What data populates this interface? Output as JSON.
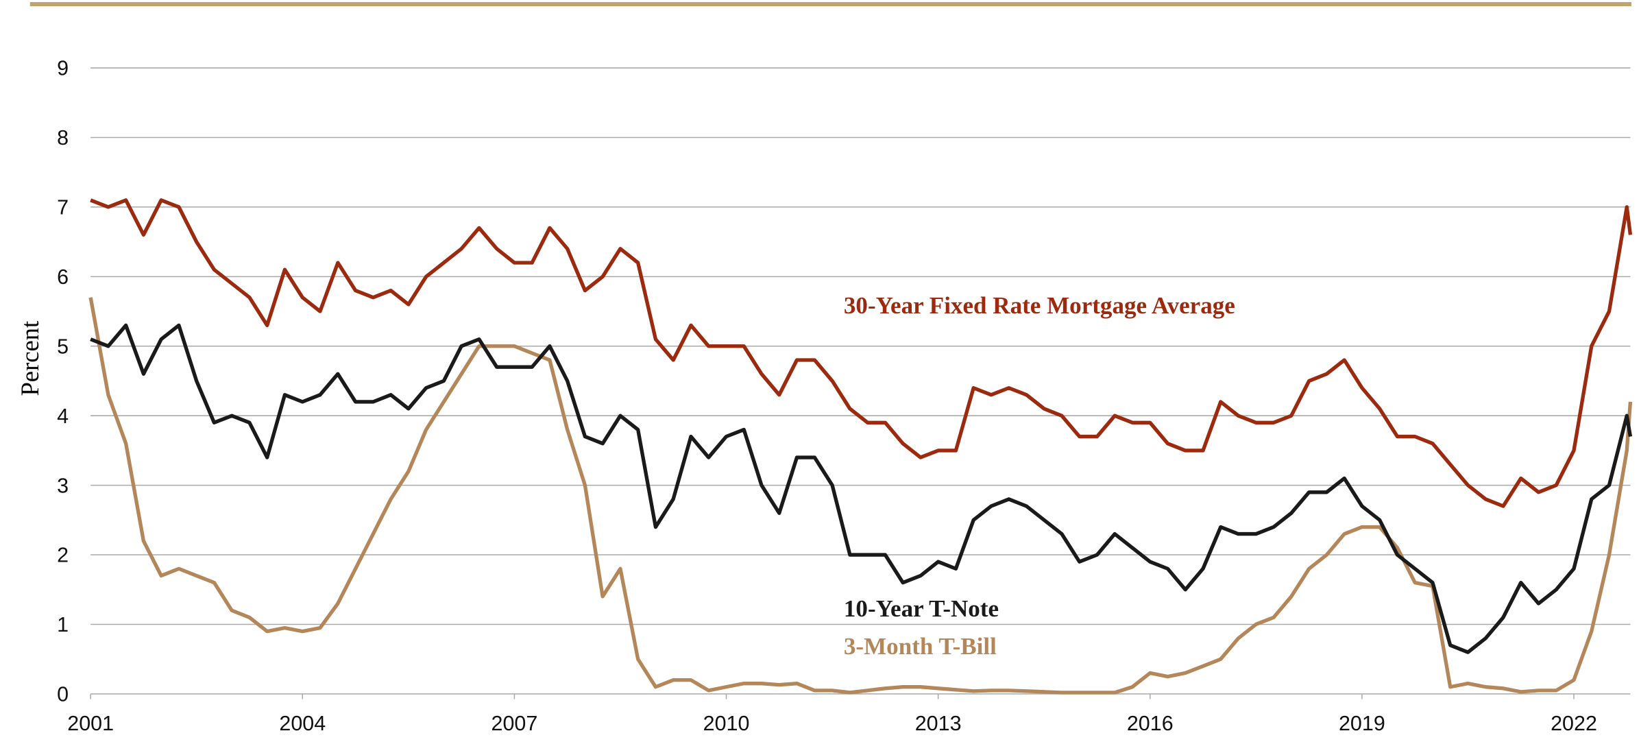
{
  "chart_data": {
    "type": "line",
    "y_label": "Percent",
    "x": [
      2001,
      2001.25,
      2001.5,
      2001.75,
      2002,
      2002.25,
      2002.5,
      2002.75,
      2003,
      2003.25,
      2003.5,
      2003.75,
      2004,
      2004.25,
      2004.5,
      2004.75,
      2005,
      2005.25,
      2005.5,
      2005.75,
      2006,
      2006.25,
      2006.5,
      2006.75,
      2007,
      2007.25,
      2007.5,
      2007.75,
      2008,
      2008.25,
      2008.5,
      2008.75,
      2009,
      2009.25,
      2009.5,
      2009.75,
      2010,
      2010.25,
      2010.5,
      2010.75,
      2011,
      2011.25,
      2011.5,
      2011.75,
      2012,
      2012.25,
      2012.5,
      2012.75,
      2013,
      2013.25,
      2013.5,
      2013.75,
      2014,
      2014.25,
      2014.5,
      2014.75,
      2015,
      2015.25,
      2015.5,
      2015.75,
      2016,
      2016.25,
      2016.5,
      2016.75,
      2017,
      2017.25,
      2017.5,
      2017.75,
      2018,
      2018.25,
      2018.5,
      2018.75,
      2019,
      2019.25,
      2019.5,
      2019.75,
      2020,
      2020.25,
      2020.5,
      2020.75,
      2021,
      2021.25,
      2021.5,
      2021.75,
      2022,
      2022.25,
      2022.5,
      2022.75,
      2022.8
    ],
    "series": [
      {
        "name": "30-Year Fixed Rate Mortgage Average",
        "color": "#9b2a0f",
        "values": [
          7.1,
          7.0,
          7.1,
          6.6,
          7.1,
          7.0,
          6.5,
          6.1,
          5.9,
          5.7,
          5.3,
          6.1,
          5.7,
          5.5,
          6.2,
          5.8,
          5.7,
          5.8,
          5.6,
          6.0,
          6.2,
          6.4,
          6.7,
          6.4,
          6.2,
          6.2,
          6.7,
          6.4,
          5.8,
          6.0,
          6.4,
          6.2,
          5.1,
          4.8,
          5.3,
          5.0,
          5.0,
          5.0,
          4.6,
          4.3,
          4.8,
          4.8,
          4.5,
          4.1,
          3.9,
          3.9,
          3.6,
          3.4,
          3.5,
          3.5,
          4.4,
          4.3,
          4.4,
          4.3,
          4.1,
          4.0,
          3.7,
          3.7,
          4.0,
          3.9,
          3.9,
          3.6,
          3.5,
          3.5,
          4.2,
          4.0,
          3.9,
          3.9,
          4.0,
          4.5,
          4.6,
          4.8,
          4.4,
          4.1,
          3.7,
          3.7,
          3.6,
          3.3,
          3.0,
          2.8,
          2.7,
          3.1,
          2.9,
          3.0,
          3.5,
          5.0,
          5.5,
          7.0,
          6.6
        ]
      },
      {
        "name": "10-Year T-Note",
        "color": "#1a1a1a",
        "values": [
          5.1,
          5.0,
          5.3,
          4.6,
          5.1,
          5.3,
          4.5,
          3.9,
          4.0,
          3.9,
          3.4,
          4.3,
          4.2,
          4.3,
          4.6,
          4.2,
          4.2,
          4.3,
          4.1,
          4.4,
          4.5,
          5.0,
          5.1,
          4.7,
          4.7,
          4.7,
          5.0,
          4.5,
          3.7,
          3.6,
          4.0,
          3.8,
          2.4,
          2.8,
          3.7,
          3.4,
          3.7,
          3.8,
          3.0,
          2.6,
          3.4,
          3.4,
          3.0,
          2.0,
          2.0,
          2.0,
          1.6,
          1.7,
          1.9,
          1.8,
          2.5,
          2.7,
          2.8,
          2.7,
          2.5,
          2.3,
          1.9,
          2.0,
          2.3,
          2.1,
          1.9,
          1.8,
          1.5,
          1.8,
          2.4,
          2.3,
          2.3,
          2.4,
          2.6,
          2.9,
          2.9,
          3.1,
          2.7,
          2.5,
          2.0,
          1.8,
          1.6,
          0.7,
          0.6,
          0.8,
          1.1,
          1.6,
          1.3,
          1.5,
          1.8,
          2.8,
          3.0,
          4.0,
          3.7
        ]
      },
      {
        "name": "3-Month T-Bill",
        "color": "#b4875a",
        "values": [
          5.7,
          4.3,
          3.6,
          2.2,
          1.7,
          1.8,
          1.7,
          1.6,
          1.2,
          1.1,
          0.9,
          0.95,
          0.9,
          0.95,
          1.3,
          1.8,
          2.3,
          2.8,
          3.2,
          3.8,
          4.2,
          4.6,
          5.0,
          5.0,
          5.0,
          4.9,
          4.8,
          3.8,
          3.0,
          1.4,
          1.8,
          0.5,
          0.1,
          0.2,
          0.2,
          0.05,
          0.1,
          0.15,
          0.15,
          0.13,
          0.15,
          0.05,
          0.05,
          0.02,
          0.05,
          0.08,
          0.1,
          0.1,
          0.08,
          0.06,
          0.04,
          0.05,
          0.05,
          0.04,
          0.03,
          0.02,
          0.02,
          0.02,
          0.02,
          0.1,
          0.3,
          0.25,
          0.3,
          0.4,
          0.5,
          0.8,
          1.0,
          1.1,
          1.4,
          1.8,
          2.0,
          2.3,
          2.4,
          2.4,
          2.1,
          1.6,
          1.55,
          0.1,
          0.15,
          0.1,
          0.08,
          0.03,
          0.05,
          0.05,
          0.2,
          0.9,
          2.0,
          3.5,
          4.2
        ]
      }
    ],
    "xlim": [
      2001,
      2022.8
    ],
    "xticks": [
      2001,
      2004,
      2007,
      2010,
      2013,
      2016,
      2019,
      2022
    ],
    "ylim": [
      0,
      9
    ],
    "yticks": [
      0,
      1,
      2,
      3,
      4,
      5,
      6,
      7,
      8,
      9
    ],
    "grid": true
  }
}
